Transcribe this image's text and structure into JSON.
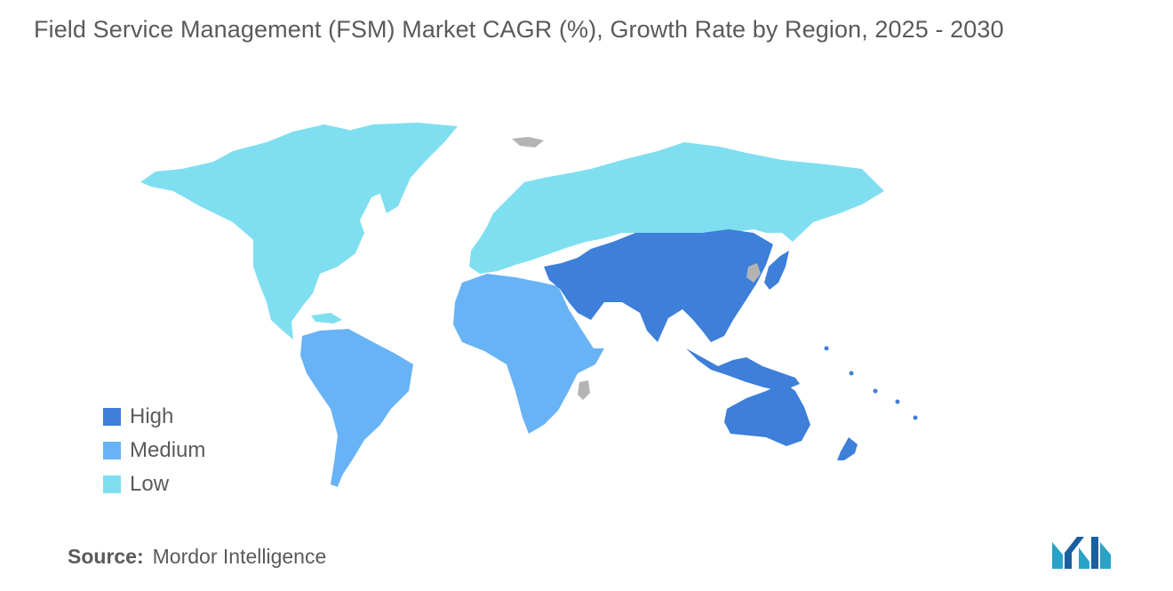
{
  "title": "Field Service Management (FSM) Market CAGR (%), Growth Rate by Region, 2025 - 2030",
  "colors": {
    "high": "#3d7fd9",
    "medium": "#68b3f5",
    "low": "#7fdff0",
    "no_data": "#b4b4b4",
    "text": "#5a5a5a"
  },
  "legend": {
    "high": "High",
    "medium": "Medium",
    "low": "Low"
  },
  "regions": {
    "north_america": "low",
    "europe_russia": "low",
    "south_america": "medium",
    "africa": "medium",
    "middle_east_asia": "high",
    "oceania": "high",
    "greenland": "low",
    "svalbard_korea": "no_data"
  },
  "source": {
    "label": "Source:",
    "value": "Mordor Intelligence"
  }
}
